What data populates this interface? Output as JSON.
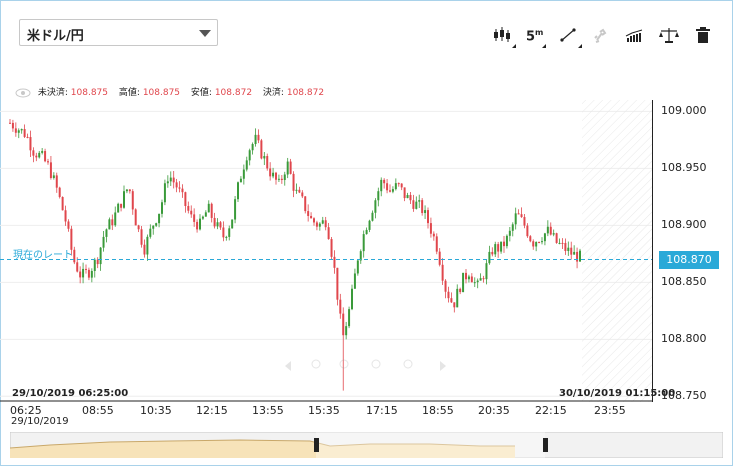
{
  "currency_selector": {
    "value": "米ドル/円"
  },
  "toolbar": {
    "items": [
      {
        "name": "chart-type",
        "icon": "candlestick-icon"
      },
      {
        "name": "timeframe",
        "label": "5",
        "unit": "m"
      },
      {
        "name": "drawing-tools",
        "icon": "trendline-icon"
      },
      {
        "name": "compare",
        "icon": "link-icon"
      },
      {
        "name": "indicators",
        "icon": "indicator-icon"
      },
      {
        "name": "scale",
        "icon": "balance-icon"
      },
      {
        "name": "delete",
        "icon": "trash-icon"
      }
    ]
  },
  "quote": {
    "unsettled_label": "未決済:",
    "unsettled_value": "108.875",
    "high_label": "高値:",
    "high_value": "108.875",
    "low_label": "安値:",
    "low_value": "108.872",
    "close_label": "決済:",
    "close_value": "108.872"
  },
  "current_rate_label": "現在のレート",
  "current_price": "108.870",
  "range_start": "29/10/2019 06:25:00",
  "range_end": "30/10/2019 01:15:00",
  "x_date": "29/10/2019",
  "chart_data": {
    "type": "candlestick",
    "x_ticks": [
      "06:25",
      "08:55",
      "10:35",
      "12:15",
      "13:55",
      "15:35",
      "17:15",
      "18:55",
      "20:35",
      "22:15",
      "23:55"
    ],
    "y_ticks": [
      "109.000",
      "108.950",
      "108.900",
      "108.850",
      "108.800",
      "108.750"
    ],
    "ylim": [
      108.745,
      109.01
    ],
    "current_price": 108.87,
    "colors": {
      "up": "#3a9a3a",
      "down": "#e0464c",
      "current": "#2aa9d8"
    },
    "close_path": [
      108.99,
      108.985,
      108.98,
      108.965,
      108.96,
      108.95,
      108.93,
      108.905,
      108.87,
      108.855,
      108.86,
      108.87,
      108.895,
      108.905,
      108.92,
      108.935,
      108.9,
      108.88,
      108.9,
      108.915,
      108.945,
      108.935,
      108.92,
      108.905,
      108.9,
      108.915,
      108.9,
      108.89,
      108.905,
      108.94,
      108.965,
      108.975,
      108.96,
      108.945,
      108.935,
      108.955,
      108.93,
      108.92,
      108.905,
      108.9,
      108.905,
      108.86,
      108.8,
      108.83,
      108.875,
      108.9,
      108.92,
      108.94,
      108.93,
      108.935,
      108.925,
      108.92,
      108.915,
      108.9,
      108.88,
      108.845,
      108.83,
      108.85,
      108.86,
      108.845,
      108.86,
      108.88,
      108.88,
      108.89,
      108.91,
      108.9,
      108.885,
      108.89,
      108.895,
      108.885,
      108.88,
      108.875,
      108.872
    ]
  }
}
